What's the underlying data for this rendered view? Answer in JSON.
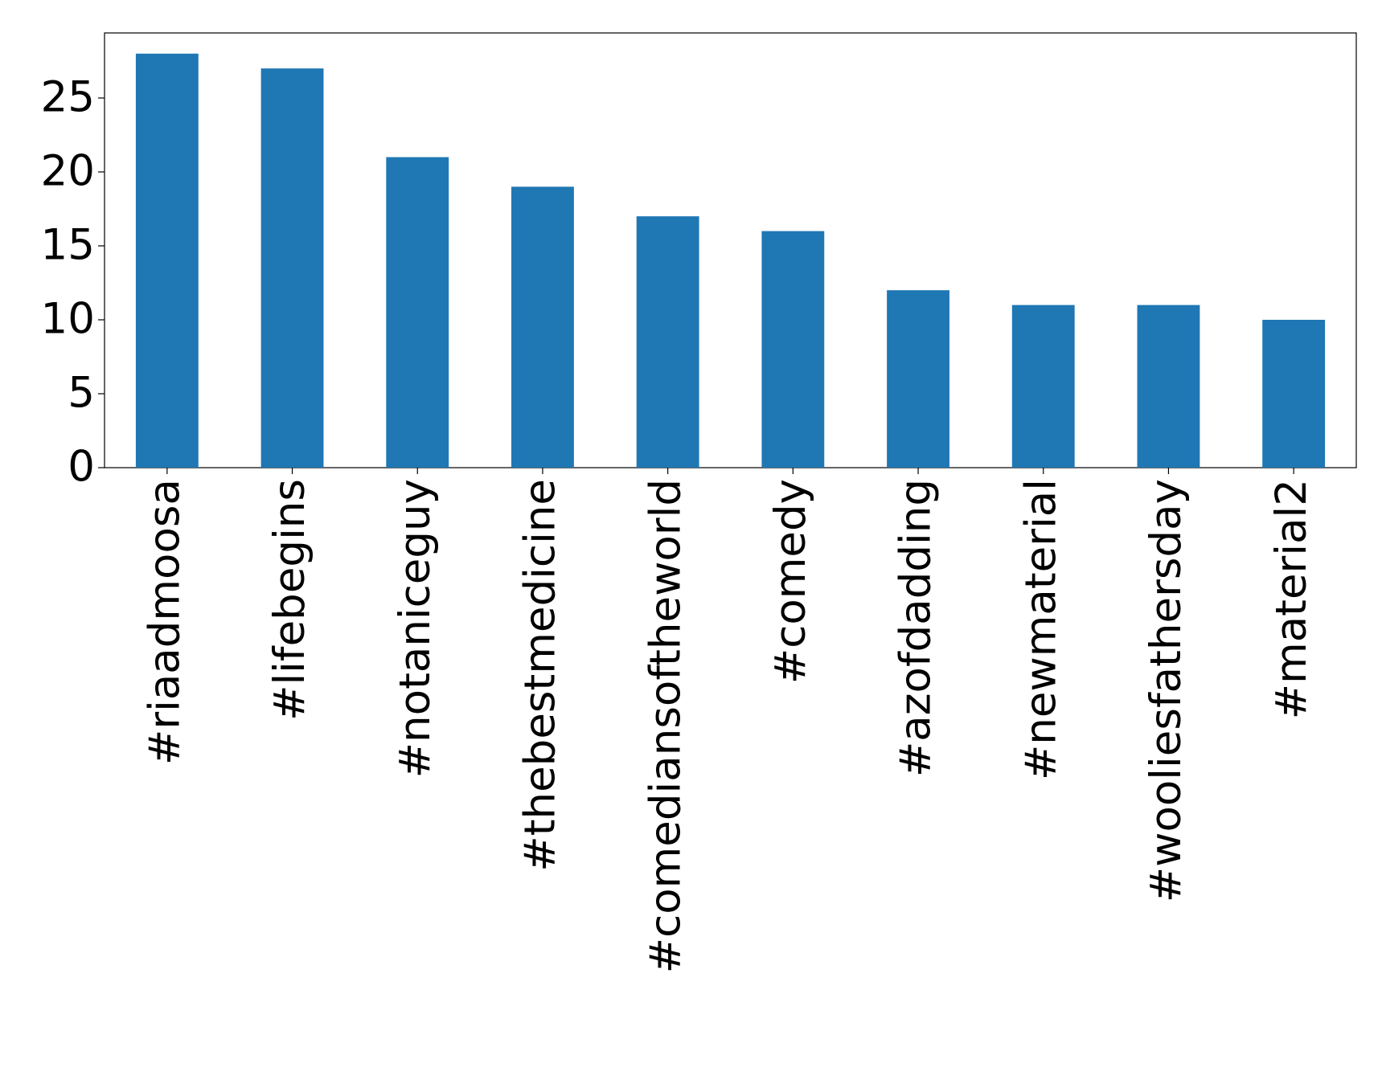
{
  "chart_data": {
    "type": "bar",
    "categories": [
      "#riaadmoosa",
      "#lifebegins",
      "#notaniceguy",
      "#thebestmedicine",
      "#comediansoftheworld",
      "#comedy",
      "#azofdadding",
      "#newmaterial",
      "#wooliesfathersday",
      "#material2"
    ],
    "values": [
      28,
      27,
      21,
      19,
      17,
      16,
      12,
      11,
      11,
      10
    ],
    "color": "#1f77b4",
    "ylim": [
      0,
      29.4
    ],
    "yticks": [
      0,
      5,
      10,
      15,
      20,
      25
    ],
    "grid": false
  }
}
